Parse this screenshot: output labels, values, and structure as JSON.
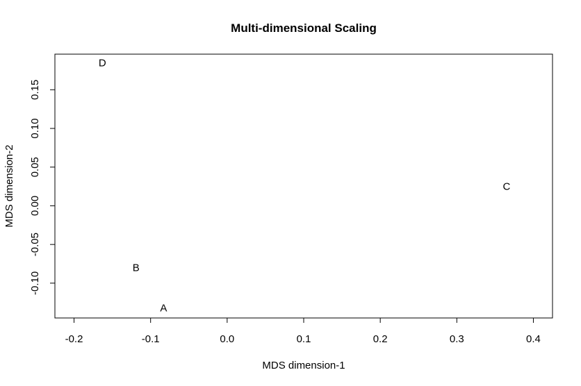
{
  "chart_data": {
    "type": "scatter",
    "title": "Multi-dimensional Scaling",
    "xlabel": "MDS dimension-1",
    "ylabel": "MDS dimension-2",
    "xlim": [
      -0.225,
      0.425
    ],
    "ylim": [
      -0.145,
      0.196
    ],
    "xticks": [
      -0.2,
      -0.1,
      0.0,
      0.1,
      0.2,
      0.3,
      0.4
    ],
    "xtick_labels": [
      "-0.2",
      "-0.1",
      "0.0",
      "0.1",
      "0.2",
      "0.3",
      "0.4"
    ],
    "yticks": [
      -0.1,
      -0.05,
      0.0,
      0.05,
      0.1,
      0.15
    ],
    "ytick_labels": [
      "-0.10",
      "-0.05",
      "0.00",
      "0.05",
      "0.10",
      "0.15"
    ],
    "grid": false,
    "points": [
      {
        "label": "D",
        "x": -0.163,
        "y": 0.185
      },
      {
        "label": "C",
        "x": 0.365,
        "y": 0.025
      },
      {
        "label": "B",
        "x": -0.119,
        "y": -0.08
      },
      {
        "label": "A",
        "x": -0.083,
        "y": -0.132
      }
    ]
  }
}
